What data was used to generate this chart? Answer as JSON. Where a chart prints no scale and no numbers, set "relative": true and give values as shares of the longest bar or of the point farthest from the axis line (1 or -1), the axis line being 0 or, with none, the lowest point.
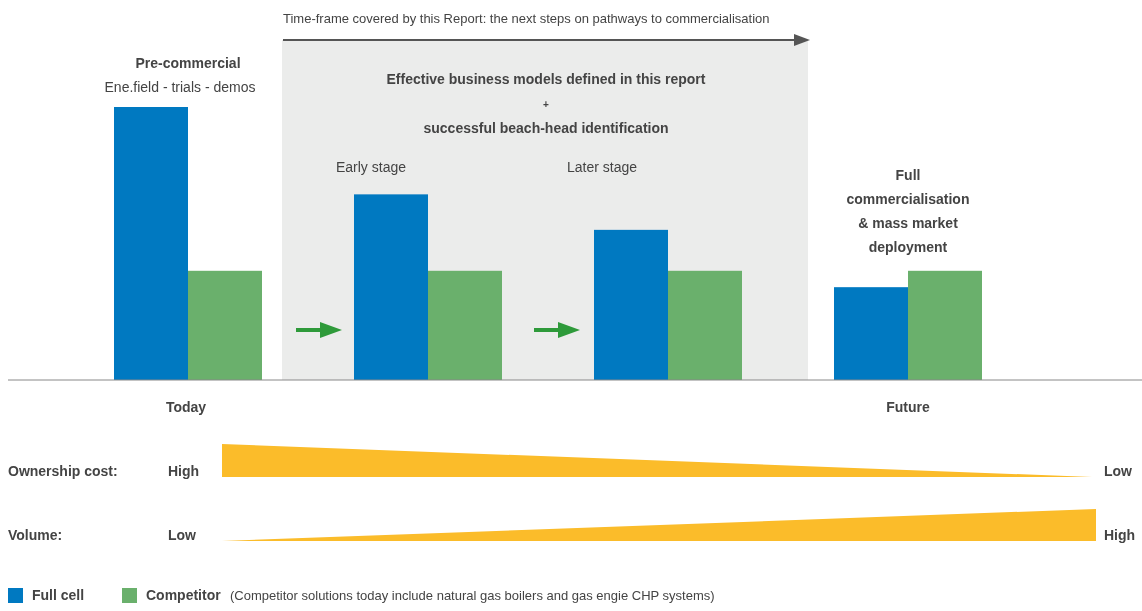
{
  "chart_data": {
    "type": "bar",
    "relative": true,
    "categories": [
      "Today",
      null,
      null,
      "Future"
    ],
    "series": [
      {
        "name": "Full cell",
        "color": "#0079c1",
        "values": [
          1,
          0.68,
          0.55,
          0.34
        ]
      },
      {
        "name": "Competitor",
        "color": "#6ab06c",
        "values": [
          0.4,
          0.4,
          0.4,
          0.4
        ]
      }
    ],
    "legend": "bottom left",
    "annotations": [
      "Time-frame covered by this Report: the next steps on pathways to commercialisation",
      "Pre-commercial",
      "Ene.field - trials - demos",
      "Effective business models defined in this report",
      "+",
      "successful beach-head identification",
      "Early stage",
      "Later stage",
      "Full commercialisation & mass market deployment",
      "Ownership cost:",
      "High",
      "Low",
      "Volume:",
      "Low",
      "High",
      "(Competitor solutions today include natural gas boilers and gas engie CHP systems)"
    ]
  }
}
